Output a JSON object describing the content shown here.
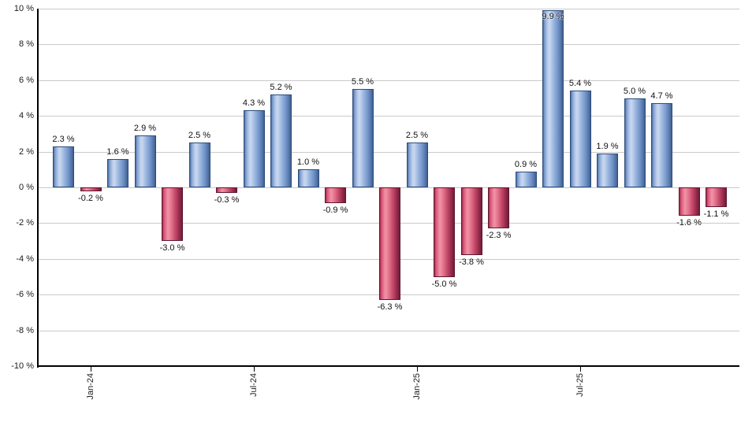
{
  "chart_data": {
    "type": "bar",
    "title": "",
    "xlabel": "",
    "ylabel": "",
    "ylim": [
      -10,
      10
    ],
    "ytick_step": 2,
    "grid": true,
    "legend": false,
    "ytick_labels": [
      "10 %",
      "8 %",
      "6 %",
      "4 %",
      "2 %",
      "0 %",
      "-2 %",
      "-4 %",
      "-6 %",
      "-8 %",
      "-10 %"
    ],
    "ytick_values": [
      10,
      8,
      6,
      4,
      2,
      0,
      -2,
      -4,
      -6,
      -8,
      -10
    ],
    "values": [
      2.3,
      -0.2,
      1.6,
      2.9,
      -3.0,
      2.5,
      -0.3,
      4.3,
      5.2,
      1.0,
      -0.9,
      5.5,
      -6.3,
      2.5,
      -5.0,
      -3.8,
      -2.3,
      0.9,
      9.9,
      5.4,
      1.9,
      5.0,
      4.7,
      -1.6,
      -1.1
    ],
    "value_labels": [
      "2.3 %",
      "-0.2 %",
      "1.6 %",
      "2.9 %",
      "-3.0 %",
      "2.5 %",
      "-0.3 %",
      "4.3 %",
      "5.2 %",
      "1.0 %",
      "-0.9 %",
      "5.5 %",
      "-6.3 %",
      "2.5 %",
      "-5.0 %",
      "-3.8 %",
      "-2.3 %",
      "0.9 %",
      "9.9 %",
      "5.4 %",
      "1.9 %",
      "5.0 %",
      "4.7 %",
      "-1.6 %",
      "-1.1 %"
    ],
    "xticks": [
      {
        "bar_index": 1,
        "label": "Jan-24"
      },
      {
        "bar_index": 7,
        "label": "Jul-24"
      },
      {
        "bar_index": 13,
        "label": "Jan-25"
      },
      {
        "bar_index": 19,
        "label": "Jul-25"
      }
    ],
    "colors": {
      "positive_bar": "#7fa1d4",
      "negative_bar": "#cf4468",
      "gridline": "#c9c9c9",
      "axis": "#000000",
      "label_text": "#111111"
    }
  }
}
